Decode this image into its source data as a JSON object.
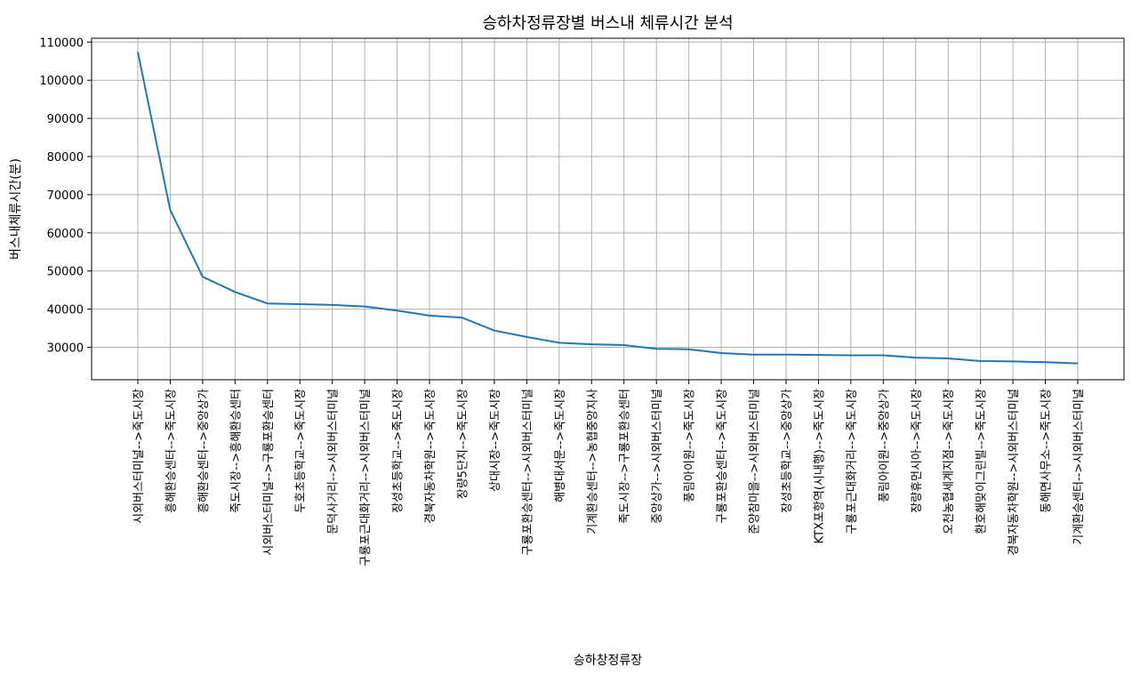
{
  "chart_data": {
    "type": "line",
    "title": "승하차정류장별 버스내 체류시간 분석",
    "xlabel": "승하창정류장",
    "ylabel": "버스내체류시간(분)",
    "ylim": [
      21500,
      111000
    ],
    "yticks": [
      30000,
      40000,
      50000,
      60000,
      70000,
      80000,
      90000,
      100000,
      110000
    ],
    "grid": true,
    "categories": [
      "시외버스터미널-->죽도시장",
      "흥해환승센터-->죽도시장",
      "흥해환승센터-->중앙상가",
      "죽도시장-->흥해환승센터",
      "시외버스터미널-->구룡포환승센터",
      "두호초등학교-->죽도시장",
      "문덕사거리-->시외버스터미널",
      "구룡포근대화거리-->시외버스터미널",
      "장성초등학교-->죽도시장",
      "경북자동차학원-->죽도시장",
      "장량5단지-->죽도시장",
      "상대시장-->죽도시장",
      "구룡포환승센터-->시외버스터미널",
      "해병대서문-->죽도시장",
      "기계환승센터-->농협중앙지사",
      "죽도시장-->구룡포환승센터",
      "중앙상가-->시외버스터미널",
      "풍림아이원-->죽도시장",
      "구룡포환승센터-->죽도시장",
      "준양참마을-->시외버스터미널",
      "장성초등학교-->중앙상가",
      "KTX포항역(시내행)-->죽도시장",
      "구룡포근대화거리-->죽도시장",
      "풍림아이원-->중앙상가",
      "장량휴먼시아-->죽도시장",
      "오천농협세계지점-->죽도시장",
      "환호해맞이그린빌-->죽도시장",
      "경북자동차학원-->시외버스터미널",
      "동해면사무소-->죽도시장",
      "기계환승센터-->시외버스터미널"
    ],
    "series": [
      {
        "color": "#1f77b4",
        "values": [
          107400,
          66000,
          48500,
          44500,
          41500,
          41300,
          41100,
          40700,
          39600,
          38300,
          37800,
          34400,
          32700,
          31200,
          30800,
          30600,
          29600,
          29500,
          28500,
          28100,
          28100,
          28000,
          27900,
          27900,
          27300,
          27100,
          26400,
          26300,
          26100,
          25800
        ]
      }
    ]
  }
}
